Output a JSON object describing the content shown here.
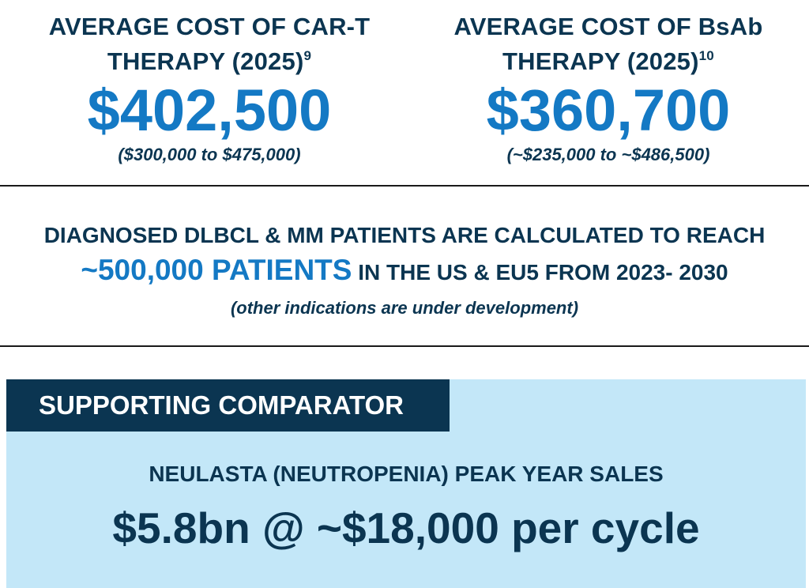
{
  "car_t": {
    "title_line1": "AVERAGE COST OF CAR-T",
    "title_line2": "THERAPY (2025)",
    "footnote": "9",
    "value": "$402,500",
    "range": "($300,000 to $475,000)"
  },
  "bsab": {
    "title_line1": "AVERAGE COST OF BsAb",
    "title_line2": "THERAPY (2025)",
    "footnote": "10",
    "value": "$360,700",
    "range": "(~$235,000 to ~$486,500)"
  },
  "patients": {
    "line1": "DIAGNOSED DLBCL & MM PATIENTS ARE CALCULATED TO REACH",
    "highlight": "~500,000 PATIENTS",
    "line2_rest": " IN THE US & EU5 FROM 2023- 2030",
    "note": "(other indications are under development)"
  },
  "comparator": {
    "tab_label": "SUPPORTING COMPARATOR",
    "subtitle": "NEULASTA (NEUTROPENIA) PEAK YEAR SALES",
    "headline": "$5.8bn @ ~$18,000 per cycle"
  },
  "colors": {
    "navy": "#0b3551",
    "blue": "#1479c4",
    "panel_background": "#c3e7f8"
  }
}
